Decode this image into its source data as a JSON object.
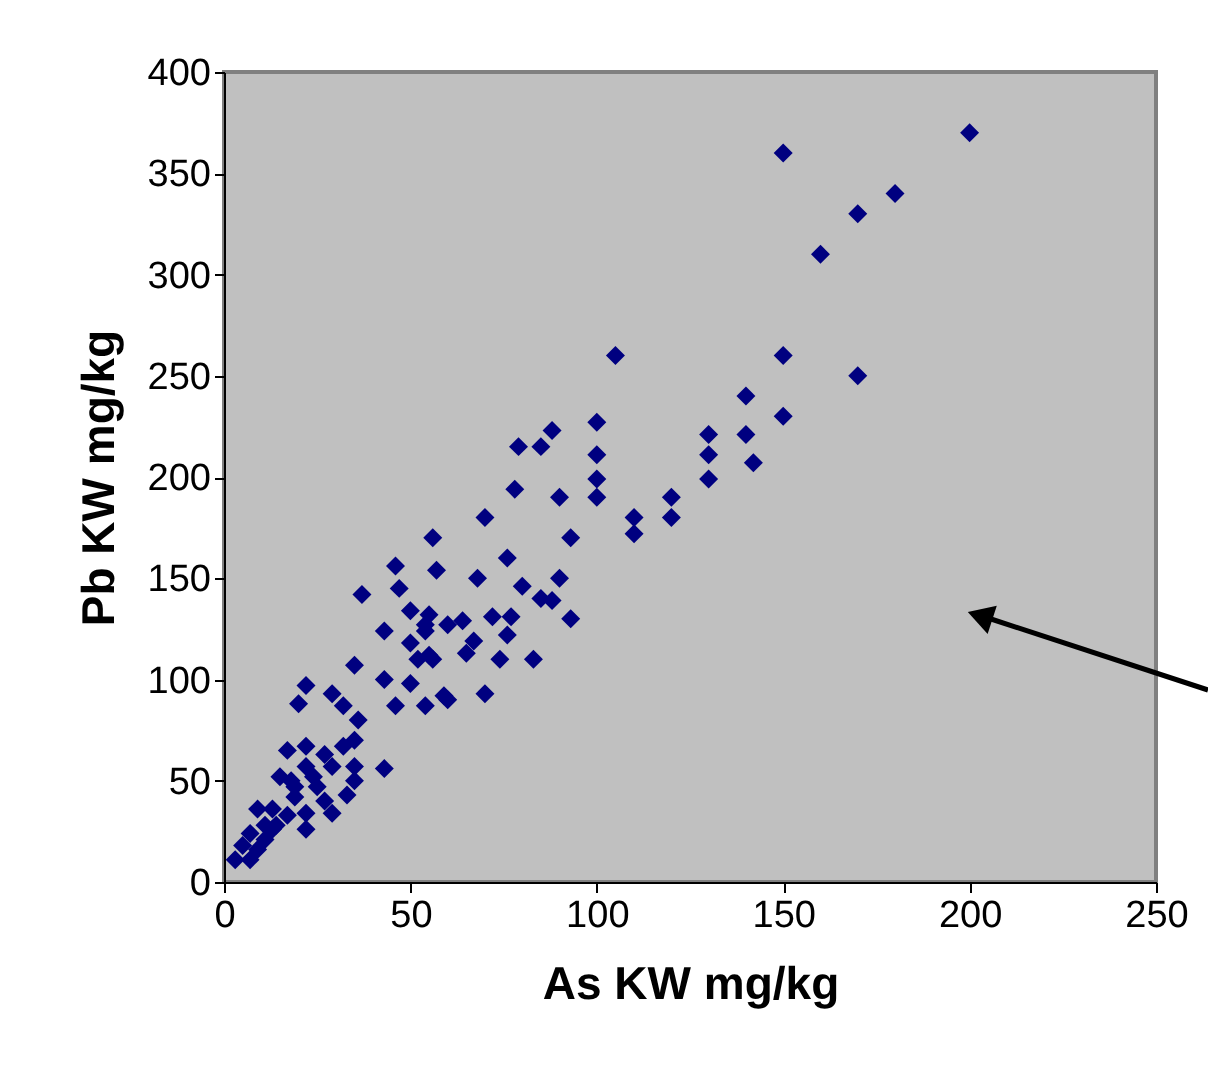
{
  "chart_data": {
    "type": "scatter",
    "xlabel": "As KW mg/kg",
    "ylabel": "Pb KW mg/kg",
    "xlim": [
      0,
      250
    ],
    "xticks": [
      0,
      50,
      100,
      150,
      200,
      250
    ],
    "ylim": [
      0,
      400
    ],
    "yticks": [
      0,
      50,
      100,
      150,
      200,
      250,
      300,
      350,
      400
    ],
    "grid": false,
    "marker": "diamond",
    "series": [
      {
        "color": "#000080",
        "x": [
          200,
          150,
          180,
          170,
          160,
          105,
          150,
          170,
          140,
          150,
          100,
          130,
          140,
          100,
          130,
          142,
          100,
          130,
          90,
          100,
          120,
          110,
          120,
          110,
          88,
          85,
          79,
          78,
          70,
          93,
          56,
          57,
          46,
          76,
          68,
          47,
          90,
          80,
          85,
          88,
          93,
          77,
          72,
          50,
          55,
          64,
          43,
          76,
          67,
          50,
          54,
          74,
          83,
          52,
          56,
          65,
          43,
          50,
          60,
          70,
          54,
          46,
          37,
          54,
          60,
          35,
          55,
          59,
          22,
          20,
          29,
          32,
          36,
          43,
          17,
          22,
          27,
          32,
          35,
          15,
          22,
          29,
          35,
          35,
          25,
          19,
          27,
          33,
          22,
          29,
          22,
          9,
          13,
          14,
          11,
          7,
          11,
          5,
          9,
          3,
          7,
          13,
          17,
          19,
          24,
          18
        ],
        "values": [
          370,
          360,
          340,
          330,
          310,
          260,
          260,
          250,
          240,
          230,
          227,
          221,
          221,
          211,
          211,
          207,
          199,
          199,
          190,
          190,
          190,
          180,
          180,
          172,
          223,
          215,
          215,
          194,
          180,
          170,
          170,
          154,
          156,
          160,
          150,
          145,
          150,
          146,
          140,
          139,
          130,
          131,
          131,
          134,
          132,
          129,
          124,
          122,
          119,
          118,
          124,
          110,
          110,
          110,
          110,
          113,
          100,
          98,
          90,
          93,
          87,
          87,
          142,
          127,
          127,
          107,
          112,
          92,
          97,
          88,
          93,
          87,
          80,
          56,
          65,
          67,
          63,
          67,
          70,
          52,
          57,
          57,
          57,
          50,
          47,
          42,
          40,
          43,
          34,
          34,
          26,
          36,
          36,
          28,
          28,
          24,
          21,
          18,
          16,
          11,
          11,
          26,
          33,
          47,
          52,
          50
        ]
      }
    ]
  }
}
